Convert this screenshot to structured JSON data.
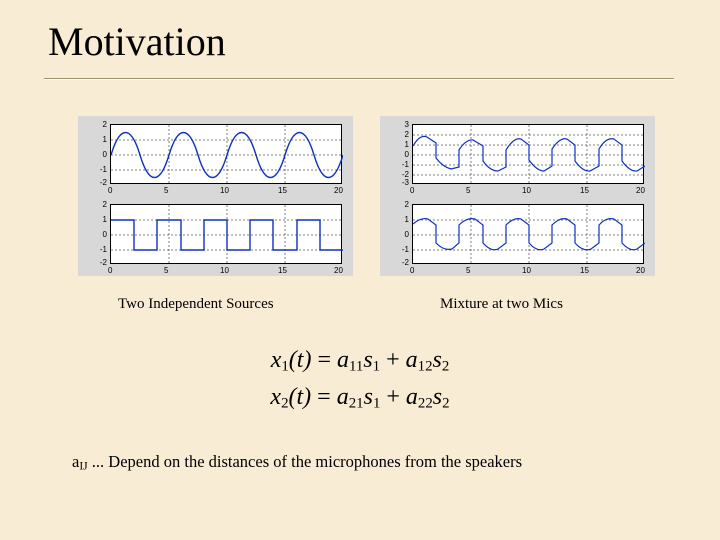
{
  "title": "Motivation",
  "captions": {
    "left": "Two Independent Sources",
    "right": "Mixture at two Mics"
  },
  "equations": {
    "line1_html": "<span class='rm'></span>x<sub>1</sub>(t) <span class='rm'>=</span> a<sub>11</sub>s<sub>1</sub> <span class='rm'>+</span> a<sub>12</sub>s<sub>2</sub>",
    "line2_html": "x<sub>2</sub>(t) <span class='rm'>=</span> a<sub>21</sub>s<sub>1</sub> <span class='rm'>+</span> a<sub>22</sub>s<sub>2</sub>"
  },
  "footnote_html": "a<sub>IJ</sub> ... Depend on the distances of the microphones from the speakers",
  "charts": {
    "panel_bg": "#d8d8d8",
    "plot_bg": "#ffffff",
    "line_color": "#1030c0",
    "grid_color": "#000000",
    "xlim": [
      0,
      20
    ],
    "xtick": [
      0,
      5,
      10,
      15,
      20
    ],
    "left_top": {
      "type": "line",
      "desc": "sine",
      "ylim": [
        -2,
        2
      ],
      "ytick": [
        -2,
        -1,
        0,
        1,
        2
      ],
      "freq": 0.5,
      "amp": 1
    },
    "left_bottom": {
      "type": "line",
      "desc": "square",
      "ylim": [
        -2,
        2
      ],
      "ytick": [
        -2,
        -1,
        0,
        1,
        2
      ],
      "period": 4,
      "amp": 1
    },
    "right_top": {
      "type": "line",
      "desc": "mixture1",
      "ylim": [
        -3,
        3
      ],
      "ytick": [
        -3,
        -2,
        -1,
        0,
        1,
        2,
        3
      ]
    },
    "right_bottom": {
      "type": "line",
      "desc": "mixture2",
      "ylim": [
        -2,
        2
      ],
      "ytick": [
        -2,
        -1,
        0,
        1,
        2
      ]
    }
  }
}
